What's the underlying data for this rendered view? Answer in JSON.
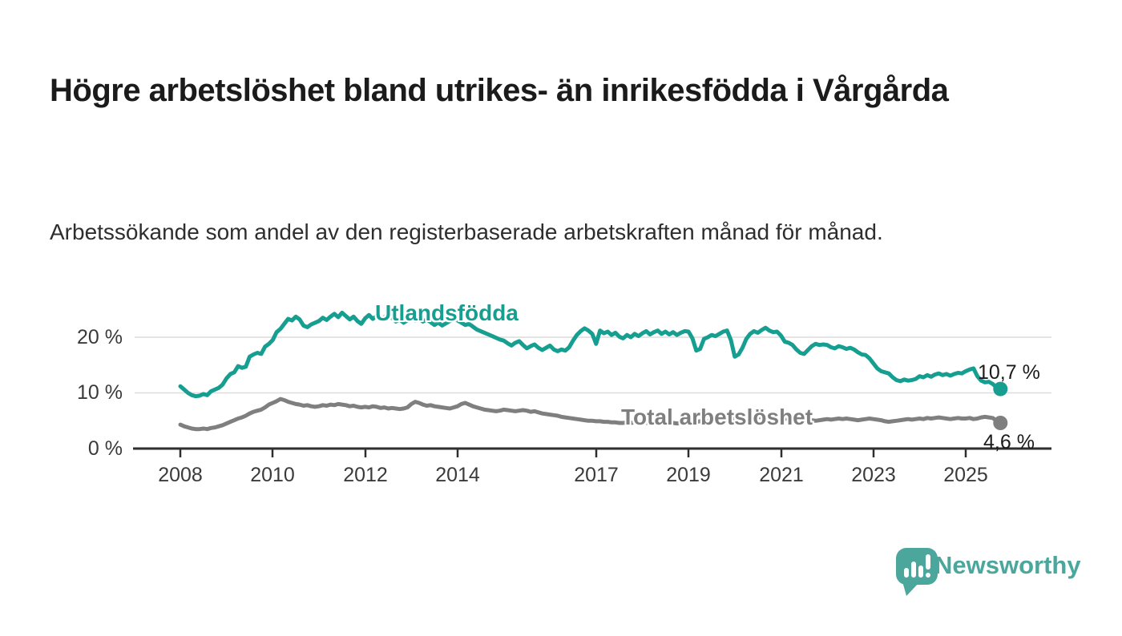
{
  "chart_data": {
    "type": "line",
    "title": "Högre arbetslöshet bland utrikes- än inrikesfödda i Vårgårda",
    "subtitle": "Arbetssökande som andel av den registerbaserade arbetskraften månad för månad.",
    "unit": "%",
    "x_axis": {
      "start_year": 2008,
      "interval": "monthly",
      "end": "2025-10"
    },
    "xticks": [
      "2008",
      "2010",
      "2012",
      "2014",
      "2017",
      "2019",
      "2021",
      "2023",
      "2025"
    ],
    "yticks": [
      "0 %",
      "10 %",
      "20 %"
    ],
    "ylim": [
      0,
      26
    ],
    "grid": true,
    "legend": "inline-labels",
    "series": [
      {
        "name": "Utlandsfödda",
        "color": "#169e90",
        "end_label": "10,7 %",
        "end_value": 10.7,
        "values": [
          11.2,
          10.6,
          10.0,
          9.6,
          9.4,
          9.5,
          9.8,
          9.6,
          10.3,
          10.6,
          10.9,
          11.5,
          12.6,
          13.4,
          13.7,
          14.8,
          14.5,
          14.7,
          16.5,
          16.9,
          17.2,
          17.0,
          18.3,
          18.8,
          19.5,
          20.9,
          21.5,
          22.4,
          23.3,
          23.0,
          23.7,
          23.2,
          22.1,
          21.8,
          22.3,
          22.6,
          22.9,
          23.5,
          23.1,
          23.7,
          24.2,
          23.6,
          24.4,
          23.8,
          23.2,
          23.7,
          22.9,
          22.4,
          23.4,
          24.0,
          23.3,
          23.8,
          23.1,
          23.6,
          24.1,
          23.4,
          22.8,
          23.2,
          22.6,
          23.0,
          23.5,
          23.0,
          23.4,
          22.8,
          23.2,
          22.7,
          22.2,
          22.6,
          22.1,
          22.5,
          22.9,
          23.3,
          23.0,
          22.6,
          22.2,
          22.4,
          21.9,
          21.4,
          21.1,
          20.8,
          20.5,
          20.2,
          19.9,
          19.6,
          19.4,
          18.9,
          18.5,
          19.0,
          19.3,
          18.6,
          18.0,
          18.4,
          18.7,
          18.1,
          17.7,
          18.1,
          18.5,
          17.8,
          17.5,
          17.8,
          17.6,
          18.2,
          19.4,
          20.4,
          21.1,
          21.6,
          21.2,
          20.6,
          18.8,
          21.2,
          20.7,
          21.0,
          20.4,
          20.8,
          20.1,
          19.8,
          20.4,
          20.0,
          20.6,
          20.2,
          20.7,
          21.1,
          20.5,
          20.9,
          21.2,
          20.6,
          21.0,
          20.5,
          20.9,
          20.4,
          20.8,
          21.1,
          21.0,
          19.8,
          17.6,
          17.9,
          19.7,
          20.0,
          20.4,
          20.2,
          20.6,
          21.0,
          21.2,
          19.5,
          16.5,
          16.9,
          18.1,
          19.7,
          20.6,
          21.1,
          20.8,
          21.3,
          21.7,
          21.2,
          20.9,
          21.0,
          20.3,
          19.2,
          19.0,
          18.6,
          17.8,
          17.2,
          17.0,
          17.7,
          18.4,
          18.8,
          18.6,
          18.7,
          18.6,
          18.2,
          18.0,
          18.4,
          18.2,
          17.9,
          18.1,
          17.8,
          17.3,
          16.9,
          16.8,
          16.2,
          15.3,
          14.4,
          13.9,
          13.7,
          13.5,
          12.8,
          12.3,
          12.1,
          12.4,
          12.2,
          12.3,
          12.5,
          13.0,
          12.8,
          13.2,
          12.9,
          13.3,
          13.5,
          13.2,
          13.4,
          13.1,
          13.4,
          13.6,
          13.5,
          13.9,
          14.2,
          14.4,
          13.0,
          12.2,
          11.9,
          12.0,
          11.6,
          11.0,
          10.7
        ]
      },
      {
        "name": "Total arbetslöshet",
        "color": "#7f7f7f",
        "end_label": "4,6 %",
        "end_value": 4.6,
        "values": [
          4.3,
          4.0,
          3.8,
          3.6,
          3.5,
          3.5,
          3.6,
          3.5,
          3.7,
          3.8,
          4.0,
          4.2,
          4.5,
          4.8,
          5.1,
          5.4,
          5.6,
          5.9,
          6.3,
          6.6,
          6.8,
          7.0,
          7.4,
          7.9,
          8.2,
          8.5,
          8.9,
          8.7,
          8.4,
          8.2,
          8.0,
          7.9,
          7.7,
          7.8,
          7.6,
          7.5,
          7.6,
          7.8,
          7.7,
          7.9,
          7.8,
          8.0,
          7.9,
          7.8,
          7.6,
          7.7,
          7.5,
          7.4,
          7.5,
          7.4,
          7.6,
          7.5,
          7.3,
          7.4,
          7.2,
          7.3,
          7.2,
          7.1,
          7.2,
          7.4,
          8.0,
          8.4,
          8.2,
          7.9,
          7.7,
          7.8,
          7.6,
          7.5,
          7.4,
          7.3,
          7.2,
          7.4,
          7.6,
          8.0,
          8.2,
          7.9,
          7.6,
          7.4,
          7.2,
          7.0,
          6.9,
          6.8,
          6.7,
          6.8,
          7.0,
          6.9,
          6.8,
          6.7,
          6.8,
          6.9,
          6.8,
          6.6,
          6.7,
          6.5,
          6.3,
          6.2,
          6.1,
          6.0,
          5.9,
          5.7,
          5.6,
          5.5,
          5.4,
          5.3,
          5.2,
          5.1,
          5.0,
          5.0,
          4.9,
          4.9,
          4.8,
          4.8,
          4.7,
          4.7,
          4.6,
          4.6,
          4.7,
          4.6,
          4.7,
          4.8,
          4.7,
          4.6,
          4.6,
          4.5,
          4.6,
          4.5,
          4.6,
          4.7,
          4.6,
          4.5,
          4.6,
          4.7,
          4.8,
          4.7,
          4.8,
          4.9,
          4.8,
          4.9,
          5.0,
          4.9,
          5.0,
          5.1,
          5.0,
          5.2,
          5.3,
          5.2,
          5.4,
          5.6,
          5.7,
          5.8,
          5.7,
          5.6,
          5.5,
          5.6,
          5.5,
          5.4,
          5.5,
          5.4,
          5.3,
          5.4,
          5.3,
          5.2,
          5.1,
          5.2,
          5.1,
          5.0,
          5.1,
          5.2,
          5.3,
          5.2,
          5.3,
          5.4,
          5.3,
          5.4,
          5.3,
          5.2,
          5.1,
          5.2,
          5.3,
          5.4,
          5.3,
          5.2,
          5.1,
          4.9,
          4.8,
          4.9,
          5.0,
          5.1,
          5.2,
          5.3,
          5.2,
          5.3,
          5.4,
          5.3,
          5.5,
          5.4,
          5.5,
          5.6,
          5.5,
          5.4,
          5.3,
          5.4,
          5.5,
          5.4,
          5.4,
          5.5,
          5.3,
          5.4,
          5.6,
          5.7,
          5.6,
          5.5,
          5.0,
          4.6
        ]
      }
    ]
  },
  "branding": {
    "text": "Newsworthy",
    "color": "#4ba69c",
    "icon": "newsworthy-speech-bubble-chart-icon"
  }
}
